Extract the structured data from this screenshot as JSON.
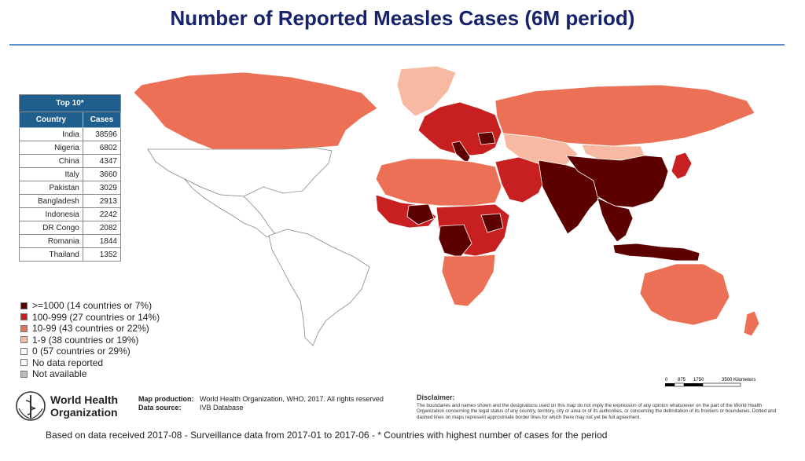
{
  "title": "Number of Reported Measles Cases (6M period)",
  "top10": {
    "caption": "Top 10*",
    "headers": [
      "Country",
      "Cases"
    ],
    "rows": [
      {
        "country": "India",
        "cases": "38596"
      },
      {
        "country": "Nigeria",
        "cases": "6802"
      },
      {
        "country": "China",
        "cases": "4347"
      },
      {
        "country": "Italy",
        "cases": "3660"
      },
      {
        "country": "Pakistan",
        "cases": "3029"
      },
      {
        "country": "Bangladesh",
        "cases": "2913"
      },
      {
        "country": "Indonesia",
        "cases": "2242"
      },
      {
        "country": "DR Congo",
        "cases": "2082"
      },
      {
        "country": "Romania",
        "cases": "1844"
      },
      {
        "country": "Thailand",
        "cases": "1352"
      }
    ]
  },
  "legend": [
    {
      "label": ">=1000 (14 countries or 7%)",
      "color": "#5c0000"
    },
    {
      "label": "100-999 (27 countries or 14%)",
      "color": "#c82020"
    },
    {
      "label": "10-99 (43 countries or 22%)",
      "color": "#ec7055"
    },
    {
      "label": "1-9 (38 countries or 19%)",
      "color": "#f7b9a2"
    },
    {
      "label": "0 (57 countries or 29%)",
      "color": "#ffffff"
    },
    {
      "label": "No data reported",
      "color": "#ffffff"
    },
    {
      "label": "Not available",
      "color": "#bdbdbd"
    }
  ],
  "who": {
    "line1": "World Health",
    "line2": "Organization"
  },
  "production": {
    "label1": "Map production:",
    "value1": "World Health Organization, WHO, 2017. All rights reserved",
    "label2": "Data source:",
    "value2": "IVB Database"
  },
  "disclaimer": {
    "heading": "Disclaimer:",
    "text": "The boundaries and names shown and the designations used on this map do not imply the expression of any opinion whatsoever on the part of the World Health Organization concerning the legal status of any country, territory, city or area or of its authorities, or concerning the delimitation of its frontiers or boundaries. Dotted and dashed lines on maps represent approximate border lines for which there may not yet be full agreement."
  },
  "scale": {
    "ticks": [
      "0",
      "875",
      "1750",
      "3500 Kilometers"
    ]
  },
  "footer": "Based on data received 2017-08 - Surveillance data from 2017-01 to 2017-06 - * Countries with highest number of cases for the period",
  "map_regions": [
    {
      "name": "canada",
      "level": "10-99",
      "color": "#ec7055"
    },
    {
      "name": "usa",
      "level": "0",
      "color": "#ffffff"
    },
    {
      "name": "mexico-central-america",
      "level": "0",
      "color": "#ffffff"
    },
    {
      "name": "greenland",
      "level": "1-9",
      "color": "#f7b9a2"
    },
    {
      "name": "south-america",
      "level": "0",
      "color": "#ffffff"
    },
    {
      "name": "russia",
      "level": "10-99",
      "color": "#ec7055"
    },
    {
      "name": "europe",
      "level": "100-999",
      "color": "#c82020"
    },
    {
      "name": "romania",
      "level": ">=1000",
      "color": "#5c0000"
    },
    {
      "name": "italy",
      "level": ">=1000",
      "color": "#5c0000"
    },
    {
      "name": "north-africa",
      "level": "10-99",
      "color": "#ec7055"
    },
    {
      "name": "west-africa",
      "level": "100-999",
      "color": "#c82020"
    },
    {
      "name": "nigeria",
      "level": ">=1000",
      "color": "#5c0000"
    },
    {
      "name": "dr-congo",
      "level": ">=1000",
      "color": "#5c0000"
    },
    {
      "name": "ethiopia",
      "level": ">=1000",
      "color": "#5c0000"
    },
    {
      "name": "southern-africa",
      "level": "10-99",
      "color": "#ec7055"
    },
    {
      "name": "middle-east",
      "level": "100-999",
      "color": "#c82020"
    },
    {
      "name": "kazakhstan-central-asia",
      "level": "1-9",
      "color": "#f7b9a2"
    },
    {
      "name": "pakistan-india",
      "level": ">=1000",
      "color": "#5c0000"
    },
    {
      "name": "china",
      "level": ">=1000",
      "color": "#5c0000"
    },
    {
      "name": "mongolia",
      "level": "1-9",
      "color": "#f7b9a2"
    },
    {
      "name": "southeast-asia",
      "level": ">=1000",
      "color": "#5c0000"
    },
    {
      "name": "indonesia",
      "level": ">=1000",
      "color": "#5c0000"
    },
    {
      "name": "japan",
      "level": "100-999",
      "color": "#c82020"
    },
    {
      "name": "australia",
      "level": "10-99",
      "color": "#ec7055"
    },
    {
      "name": "new-zealand",
      "level": "10-99",
      "color": "#ec7055"
    }
  ]
}
